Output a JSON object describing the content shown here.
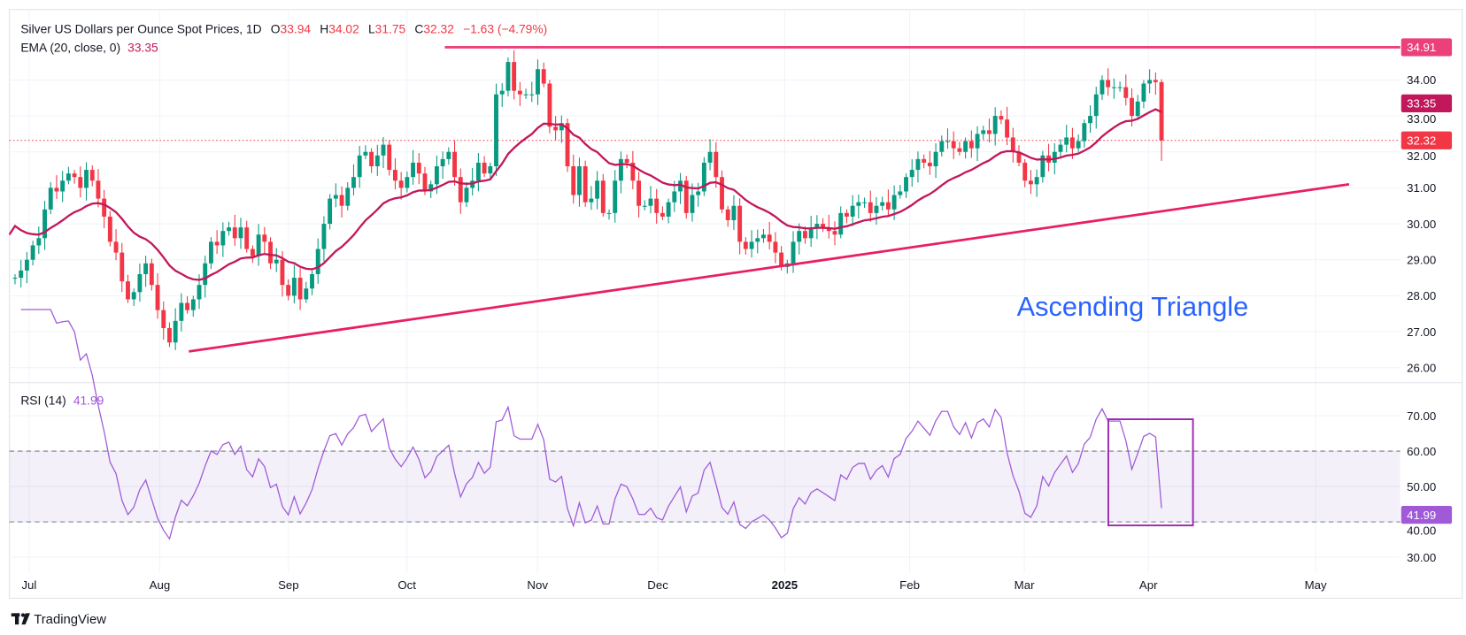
{
  "header": {
    "symbol_title": "Silver US Dollars per Ounce Spot Prices, 1D",
    "open_label": "O",
    "open": "33.94",
    "high_label": "H",
    "high": "34.02",
    "low_label": "L",
    "low": "31.75",
    "close_label": "C",
    "close": "32.32",
    "change": "−1.63 (−4.79%)"
  },
  "ema": {
    "label": "EMA (20, close, 0)",
    "value": "33.35",
    "period": 20
  },
  "rsi": {
    "label": "RSI (14)",
    "value": "41.99",
    "period": 14,
    "band_upper": 60,
    "band_lower": 40,
    "axis_labels": [
      "70.00",
      "60.00",
      "50.00",
      "40.00",
      "30.00"
    ],
    "value_tag": "41.99"
  },
  "price_axis": {
    "labels": [
      "34.00",
      "33.00",
      "32.00",
      "31.00",
      "30.00",
      "29.00",
      "28.00",
      "27.00",
      "26.00"
    ],
    "resistance_tag": "34.91",
    "ema_tag": "33.35",
    "last_price_tag": "32.32"
  },
  "time_axis": {
    "labels": [
      "Jul",
      "Aug",
      "Sep",
      "Oct",
      "Nov",
      "Dec",
      "2025",
      "Feb",
      "Mar",
      "Apr",
      "May"
    ]
  },
  "annotations": {
    "pattern_label": "Ascending Triangle",
    "resistance": {
      "price": 34.91,
      "from_date": "2024-10-10"
    },
    "support": {
      "from_date": "2024-08-08",
      "from_price": 26.45,
      "to_date": "2025-05-07",
      "to_price": 31.1
    },
    "rsi_box": {
      "from_date": "2025-03-22",
      "to_date": "2025-04-09",
      "rsi_high": 69,
      "rsi_low": 39
    }
  },
  "branding": {
    "logo_text": "TradingView"
  },
  "colors": {
    "up": "#089981",
    "down": "#f23645",
    "ema": "#c2185b",
    "trendline": "#e91e63",
    "resistance_tag": "#ec407a",
    "rsi": "#a05ad8",
    "pattern_label": "#2962ff",
    "rsi_box": "#9c27b0"
  },
  "chart_data": {
    "type": "candlestick",
    "title": "Silver US Dollars per Ounce Spot Prices, 1D",
    "interval": "1D",
    "x_range": [
      "2024-06-28",
      "2025-04-02"
    ],
    "ylim": [
      25.7,
      35.5
    ],
    "grid": true,
    "closes": [
      28.5,
      28.7,
      29.0,
      29.4,
      29.6,
      30.4,
      31.0,
      30.9,
      31.2,
      31.4,
      31.3,
      31.0,
      31.5,
      31.2,
      30.7,
      30.2,
      29.5,
      29.2,
      28.4,
      27.9,
      28.1,
      28.6,
      28.9,
      28.3,
      27.6,
      27.1,
      26.7,
      27.3,
      27.8,
      27.6,
      27.9,
      28.3,
      28.9,
      29.5,
      29.4,
      29.8,
      29.9,
      29.6,
      29.9,
      29.3,
      29.1,
      29.7,
      29.5,
      28.9,
      29.0,
      28.3,
      28.0,
      28.5,
      27.9,
      28.2,
      28.6,
      29.3,
      30.0,
      30.7,
      30.8,
      30.5,
      31.0,
      31.3,
      31.9,
      32.0,
      31.6,
      31.9,
      32.2,
      31.5,
      31.2,
      31.0,
      31.3,
      31.7,
      31.4,
      30.9,
      31.1,
      31.6,
      31.8,
      32.0,
      31.3,
      30.6,
      31.0,
      31.2,
      31.7,
      31.4,
      31.6,
      33.6,
      33.7,
      34.5,
      33.7,
      33.6,
      33.6,
      33.6,
      34.3,
      33.9,
      32.7,
      32.6,
      32.8,
      31.6,
      30.8,
      31.6,
      30.6,
      30.7,
      31.2,
      30.3,
      30.3,
      31.2,
      31.8,
      31.7,
      31.2,
      30.5,
      30.5,
      30.7,
      30.3,
      30.2,
      30.6,
      30.9,
      31.2,
      30.3,
      30.8,
      30.9,
      31.7,
      32.0,
      31.3,
      30.4,
      30.1,
      30.5,
      29.5,
      29.3,
      29.5,
      29.6,
      29.7,
      29.5,
      29.2,
      28.8,
      28.9,
      29.5,
      29.8,
      29.6,
      29.9,
      30.0,
      29.9,
      29.8,
      29.7,
      30.3,
      30.2,
      30.5,
      30.6,
      30.6,
      30.3,
      30.5,
      30.6,
      30.4,
      30.8,
      30.9,
      31.3,
      31.5,
      31.8,
      31.7,
      31.6,
      32.0,
      32.3,
      32.3,
      32.1,
      32.0,
      32.3,
      32.1,
      32.5,
      32.6,
      32.5,
      33.0,
      32.9,
      32.4,
      32.0,
      31.7,
      31.2,
      31.1,
      31.3,
      31.9,
      31.7,
      32.0,
      32.2,
      32.4,
      32.1,
      32.3,
      32.8,
      33.0,
      33.6,
      34.0,
      33.8,
      33.8,
      33.8,
      33.5,
      33.0,
      33.4,
      33.9,
      34.0,
      33.94,
      32.32
    ],
    "last_bar": {
      "open": 33.94,
      "high": 34.02,
      "low": 31.75,
      "close": 32.32
    },
    "period_high": 34.91
  }
}
